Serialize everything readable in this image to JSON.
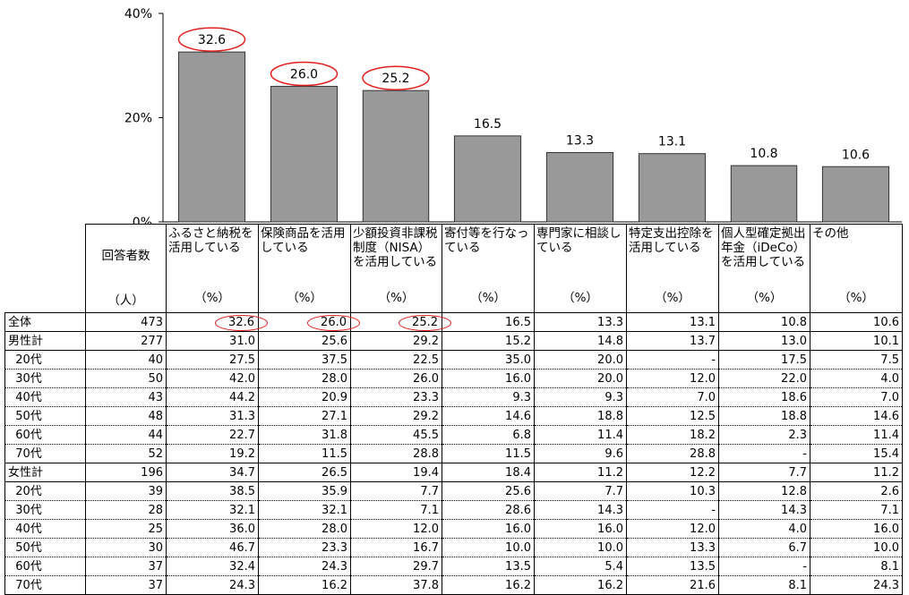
{
  "chart_data": {
    "type": "bar",
    "categories": [
      "ふるさと納税を活用している",
      "保険商品を活用している",
      "少額投資非課税制度（NISA）を活用している",
      "寄付等を行なっている",
      "専門家に相談している",
      "特定支出控除を活用している",
      "個人型確定拠出年金（iDeCo）を活用している",
      "その他"
    ],
    "values": [
      32.6,
      26.0,
      25.2,
      16.5,
      13.3,
      13.1,
      10.8,
      10.6
    ],
    "value_labels": [
      "32.6",
      "26.0",
      "25.2",
      "16.5",
      "13.3",
      "13.1",
      "10.8",
      "10.6"
    ],
    "highlighted": [
      true,
      true,
      true,
      false,
      false,
      false,
      false,
      false
    ],
    "ylim": [
      0,
      40
    ],
    "yticks": [
      "0%",
      "20%",
      "40%"
    ],
    "bar_color": "#999999",
    "highlight_color": "#e0201e"
  },
  "table": {
    "count_header": "回答者数",
    "count_unit": "（人）",
    "headers": [
      {
        "label": "ふるさと納税を活用している",
        "unit": "（%）"
      },
      {
        "label": "保険商品を活用している",
        "unit": "（%）"
      },
      {
        "label": "少額投資非課税制度（NISA）を活用している",
        "unit": "（%）"
      },
      {
        "label": "寄付等を行なっている",
        "unit": "（%）"
      },
      {
        "label": "専門家に相談している",
        "unit": "（%）"
      },
      {
        "label": "特定支出控除を活用している",
        "unit": "（%）"
      },
      {
        "label": "個人型確定拠出年金（iDeCo）を活用している",
        "unit": "（%）"
      },
      {
        "label": "その他",
        "unit": "（%）"
      }
    ],
    "rows": [
      {
        "label": "全体",
        "count": "473",
        "values": [
          "32.6",
          "26.0",
          "25.2",
          "16.5",
          "13.3",
          "13.1",
          "10.8",
          "10.6"
        ],
        "group": "total"
      },
      {
        "label": "男性計",
        "count": "277",
        "values": [
          "31.0",
          "25.6",
          "29.2",
          "15.2",
          "14.8",
          "13.7",
          "13.0",
          "10.1"
        ],
        "group": "subtotal"
      },
      {
        "label": "20代",
        "count": "40",
        "values": [
          "27.5",
          "37.5",
          "22.5",
          "35.0",
          "20.0",
          "-",
          "17.5",
          "7.5"
        ],
        "group": "age"
      },
      {
        "label": "30代",
        "count": "50",
        "values": [
          "42.0",
          "28.0",
          "26.0",
          "16.0",
          "20.0",
          "12.0",
          "22.0",
          "4.0"
        ],
        "group": "age"
      },
      {
        "label": "40代",
        "count": "43",
        "values": [
          "44.2",
          "20.9",
          "23.3",
          "9.3",
          "9.3",
          "7.0",
          "18.6",
          "7.0"
        ],
        "group": "age"
      },
      {
        "label": "50代",
        "count": "48",
        "values": [
          "31.3",
          "27.1",
          "29.2",
          "14.6",
          "18.8",
          "12.5",
          "18.8",
          "14.6"
        ],
        "group": "age"
      },
      {
        "label": "60代",
        "count": "44",
        "values": [
          "22.7",
          "31.8",
          "45.5",
          "6.8",
          "11.4",
          "18.2",
          "2.3",
          "11.4"
        ],
        "group": "age"
      },
      {
        "label": "70代",
        "count": "52",
        "values": [
          "19.2",
          "11.5",
          "28.8",
          "11.5",
          "9.6",
          "28.8",
          "-",
          "15.4"
        ],
        "group": "age"
      },
      {
        "label": "女性計",
        "count": "196",
        "values": [
          "34.7",
          "26.5",
          "19.4",
          "18.4",
          "11.2",
          "12.2",
          "7.7",
          "11.2"
        ],
        "group": "subtotal"
      },
      {
        "label": "20代",
        "count": "39",
        "values": [
          "38.5",
          "35.9",
          "7.7",
          "25.6",
          "7.7",
          "10.3",
          "12.8",
          "2.6"
        ],
        "group": "age"
      },
      {
        "label": "30代",
        "count": "28",
        "values": [
          "32.1",
          "32.1",
          "7.1",
          "28.6",
          "14.3",
          "-",
          "14.3",
          "7.1"
        ],
        "group": "age"
      },
      {
        "label": "40代",
        "count": "25",
        "values": [
          "36.0",
          "28.0",
          "12.0",
          "16.0",
          "16.0",
          "12.0",
          "4.0",
          "16.0"
        ],
        "group": "age"
      },
      {
        "label": "50代",
        "count": "30",
        "values": [
          "46.7",
          "23.3",
          "16.7",
          "10.0",
          "10.0",
          "13.3",
          "6.7",
          "10.0"
        ],
        "group": "age"
      },
      {
        "label": "60代",
        "count": "37",
        "values": [
          "32.4",
          "24.3",
          "29.7",
          "13.5",
          "5.4",
          "13.5",
          "-",
          "8.1"
        ],
        "group": "age"
      },
      {
        "label": "70代",
        "count": "37",
        "values": [
          "24.3",
          "16.2",
          "37.8",
          "16.2",
          "16.2",
          "21.6",
          "8.1",
          "24.3"
        ],
        "group": "age"
      }
    ]
  }
}
